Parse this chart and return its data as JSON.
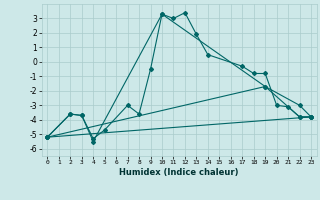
{
  "xlabel": "Humidex (Indice chaleur)",
  "ylabel": "",
  "bg_color": "#cde8e8",
  "grid_color": "#aacccc",
  "line_color": "#006666",
  "xlim": [
    -0.5,
    23.5
  ],
  "ylim": [
    -6.5,
    4.0
  ],
  "yticks": [
    -6,
    -5,
    -4,
    -3,
    -2,
    -1,
    0,
    1,
    2,
    3
  ],
  "xticks": [
    0,
    1,
    2,
    3,
    4,
    5,
    6,
    7,
    8,
    9,
    10,
    11,
    12,
    13,
    14,
    15,
    16,
    17,
    18,
    19,
    20,
    21,
    22,
    23
  ],
  "series1_x": [
    0,
    2,
    3,
    4,
    5,
    7,
    8,
    9,
    10,
    11,
    12,
    13,
    14,
    17,
    18,
    19,
    20,
    21,
    22,
    23
  ],
  "series1_y": [
    -5.2,
    -3.6,
    -3.7,
    -5.3,
    -4.7,
    -3.0,
    -3.6,
    -0.5,
    3.3,
    3.0,
    3.4,
    1.9,
    0.5,
    -0.3,
    -0.8,
    -0.8,
    -3.0,
    -3.1,
    -3.8,
    -3.8
  ],
  "series2_x": [
    0,
    2,
    3,
    4,
    10,
    19,
    22,
    23
  ],
  "series2_y": [
    -5.2,
    -3.6,
    -3.7,
    -5.5,
    3.3,
    -1.7,
    -3.8,
    -3.8
  ],
  "series3_x": [
    0,
    23
  ],
  "series3_y": [
    -5.2,
    -3.8
  ],
  "series4_x": [
    0,
    19,
    22,
    23
  ],
  "series4_y": [
    -5.2,
    -1.7,
    -3.0,
    -3.8
  ]
}
